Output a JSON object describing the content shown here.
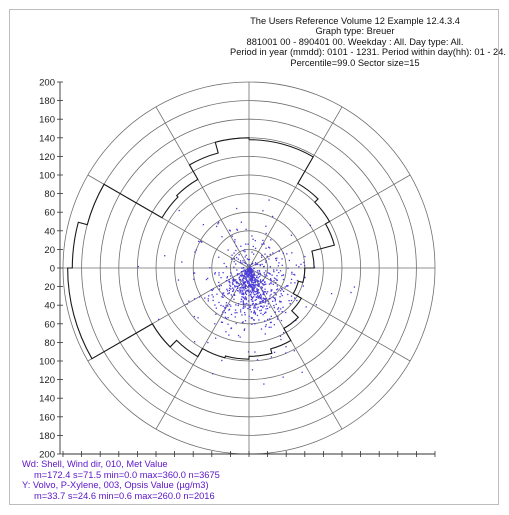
{
  "header": {
    "lines": [
      "The Users Reference Volume 12 Example 12.4.3.4",
      "Graph type: Breuer",
      "881001 00 - 890401 00. Weekday : All. Day type: All.",
      "Period in year (mmdd): 0101 - 1231. Period within day(hh): 01 - 24.",
      "Percentile=99.0 Sector size=15"
    ]
  },
  "chart_data": {
    "type": "scatter",
    "subtype": "polar-breuer",
    "axis": {
      "ticks_top": [
        200,
        180,
        160,
        140,
        120,
        100,
        80,
        60,
        40,
        20,
        0
      ],
      "ticks_bottom": [
        20,
        40,
        60,
        80,
        100,
        120,
        140,
        160,
        180,
        200
      ],
      "rmax": 200,
      "ring_step": 20,
      "spoke_step_deg": 30,
      "grid": true
    },
    "sector_size_deg": 15,
    "percentile": 99.0,
    "percentile_line": [
      {
        "from": 0,
        "to": 15,
        "value": 138
      },
      {
        "from": 15,
        "to": 30,
        "value": 138
      },
      {
        "from": 30,
        "to": 45,
        "value": 105
      },
      {
        "from": 45,
        "to": 60,
        "value": 100
      },
      {
        "from": 60,
        "to": 75,
        "value": 95
      },
      {
        "from": 75,
        "to": 90,
        "value": 70
      },
      {
        "from": 90,
        "to": 105,
        "value": 60
      },
      {
        "from": 105,
        "to": 120,
        "value": 55
      },
      {
        "from": 120,
        "to": 135,
        "value": 65
      },
      {
        "from": 135,
        "to": 150,
        "value": 75
      },
      {
        "from": 150,
        "to": 165,
        "value": 90
      },
      {
        "from": 165,
        "to": 180,
        "value": 95
      },
      {
        "from": 180,
        "to": 195,
        "value": 98
      },
      {
        "from": 195,
        "to": 210,
        "value": 100
      },
      {
        "from": 210,
        "to": 225,
        "value": 110
      },
      {
        "from": 225,
        "to": 240,
        "value": 120
      },
      {
        "from": 240,
        "to": 255,
        "value": 195
      },
      {
        "from": 255,
        "to": 270,
        "value": 195
      },
      {
        "from": 270,
        "to": 285,
        "value": 190
      },
      {
        "from": 285,
        "to": 300,
        "value": 180
      },
      {
        "from": 300,
        "to": 315,
        "value": 108
      },
      {
        "from": 315,
        "to": 330,
        "value": 110
      },
      {
        "from": 330,
        "to": 345,
        "value": 128
      },
      {
        "from": 345,
        "to": 360,
        "value": 140
      }
    ],
    "scatter_summary": {
      "count": 2016,
      "direction": {
        "mean": 172.4,
        "sd": 71.5,
        "min": 0.0,
        "max": 360.0
      },
      "value": {
        "mean": 33.7,
        "sd": 24.6,
        "min": 0.6,
        "max": 260.0
      },
      "point_color": "#4a3ad8"
    },
    "colors": {
      "grid": "#6e6e6e",
      "percentile_line": "#1a1a1a",
      "stats_text": "#5a14c8"
    }
  },
  "stats": {
    "x_label": "Wd: Shell, Wind dir, 010, Met Value",
    "x_stats": "m=172.4 s=71.5 min=0.0 max=360.0 n=3675",
    "y_label": "Y: Volvo, P-Xylene, 003, Opsis Value (µg/m3)",
    "y_stats": "m=33.7 s=24.6 min=0.6 max=260.0 n=2016"
  }
}
